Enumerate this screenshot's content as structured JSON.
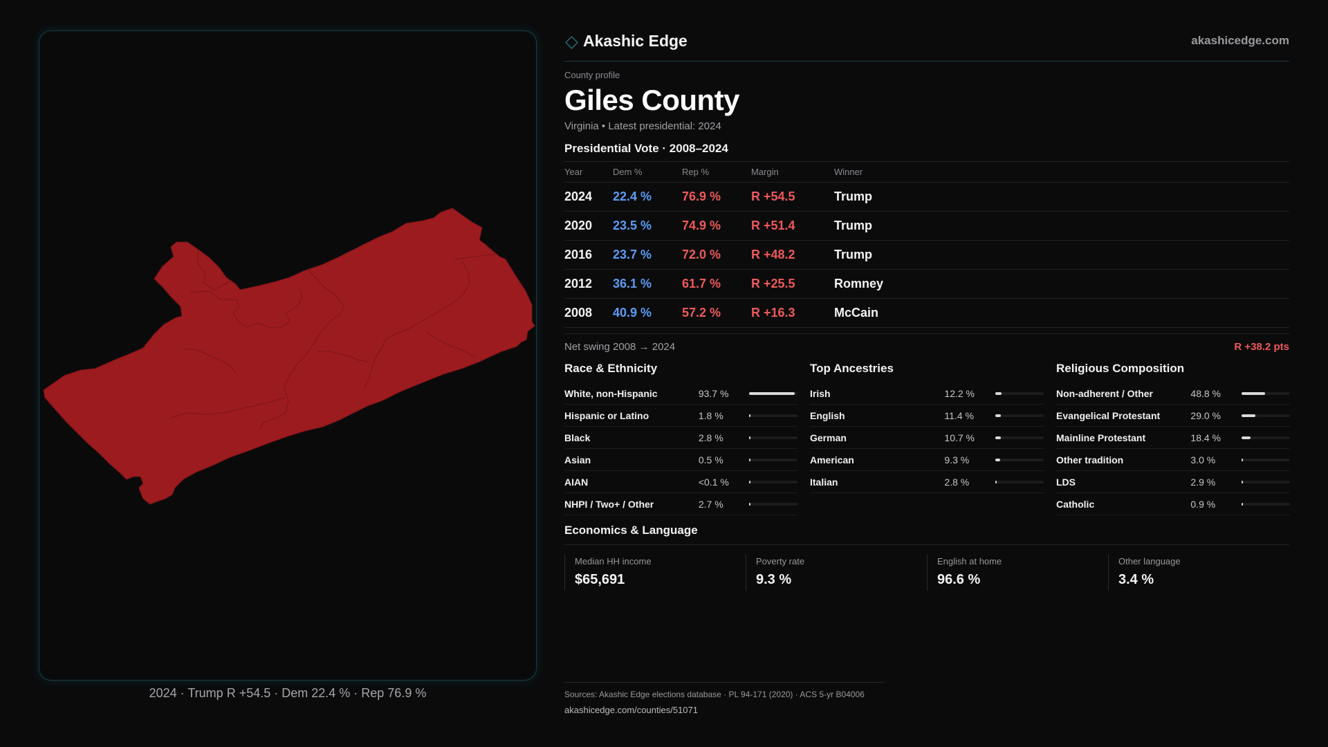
{
  "brand": {
    "name": "Akashic Edge",
    "url": "akashicedge.com"
  },
  "header": {
    "eyebrow": "County profile",
    "title": "Giles County",
    "subtitle": "Virginia • Latest presidential: 2024"
  },
  "presidential": {
    "title": "Presidential Vote · 2008–2024",
    "columns": [
      "Year",
      "Dem %",
      "Rep %",
      "Margin",
      "Winner"
    ],
    "rows": [
      {
        "year": "2024",
        "dem": "22.4 %",
        "rep": "76.9 %",
        "margin": "R +54.5",
        "winner": "Trump"
      },
      {
        "year": "2020",
        "dem": "23.5 %",
        "rep": "74.9 %",
        "margin": "R +51.4",
        "winner": "Trump"
      },
      {
        "year": "2016",
        "dem": "23.7 %",
        "rep": "72.0 %",
        "margin": "R +48.2",
        "winner": "Trump"
      },
      {
        "year": "2012",
        "dem": "36.1 %",
        "rep": "61.7 %",
        "margin": "R +25.5",
        "winner": "Romney"
      },
      {
        "year": "2008",
        "dem": "40.9 %",
        "rep": "57.2 %",
        "margin": "R +16.3",
        "winner": "McCain"
      }
    ],
    "swing_label": "Net swing 2008 → 2024",
    "swing_value": "R +38.2 pts"
  },
  "race": {
    "title": "Race & Ethnicity",
    "rows": [
      {
        "name": "White, non-Hispanic",
        "value": "93.7 %",
        "fraction": 0.937
      },
      {
        "name": "Hispanic or Latino",
        "value": "1.8 %",
        "fraction": 0.018
      },
      {
        "name": "Black",
        "value": "2.8 %",
        "fraction": 0.028
      },
      {
        "name": "Asian",
        "value": "0.5 %",
        "fraction": 0.005
      },
      {
        "name": "AIAN",
        "value": "<0.1 %",
        "fraction": 0.0
      },
      {
        "name": "NHPI / Two+ / Other",
        "value": "2.7 %",
        "fraction": 0.027
      }
    ]
  },
  "ancestry": {
    "title": "Top Ancestries",
    "rows": [
      {
        "name": "Irish",
        "value": "12.2 %",
        "fraction": 0.122
      },
      {
        "name": "English",
        "value": "11.4 %",
        "fraction": 0.114
      },
      {
        "name": "German",
        "value": "10.7 %",
        "fraction": 0.107
      },
      {
        "name": "American",
        "value": "9.3 %",
        "fraction": 0.093
      },
      {
        "name": "Italian",
        "value": "2.8 %",
        "fraction": 0.028
      }
    ]
  },
  "religion": {
    "title": "Religious Composition",
    "rows": [
      {
        "name": "Non-adherent / Other",
        "value": "48.8 %",
        "fraction": 0.488
      },
      {
        "name": "Evangelical Protestant",
        "value": "29.0 %",
        "fraction": 0.29
      },
      {
        "name": "Mainline Protestant",
        "value": "18.4 %",
        "fraction": 0.184
      },
      {
        "name": "Other tradition",
        "value": "3.0 %",
        "fraction": 0.03
      },
      {
        "name": "LDS",
        "value": "2.9 %",
        "fraction": 0.029
      },
      {
        "name": "Catholic",
        "value": "0.9 %",
        "fraction": 0.009
      }
    ]
  },
  "economics": {
    "title": "Economics & Language",
    "stats": [
      {
        "label": "Median HH income",
        "value": "$65,691"
      },
      {
        "label": "Poverty rate",
        "value": "9.3 %"
      },
      {
        "label": "English at home",
        "value": "96.6 %"
      },
      {
        "label": "Other language",
        "value": "3.4 %"
      }
    ]
  },
  "map": {
    "caption": "2024 · Trump R +54.5 · Dem 22.4 % · Rep 76.9 %",
    "fill_color": "#9c1b1f",
    "border_color": "#7a1418"
  },
  "sources": {
    "line": "Sources: Akashic Edge elections database · PL 94-171 (2020) · ACS 5-yr B04006",
    "url": "akashicedge.com/counties/51071"
  }
}
